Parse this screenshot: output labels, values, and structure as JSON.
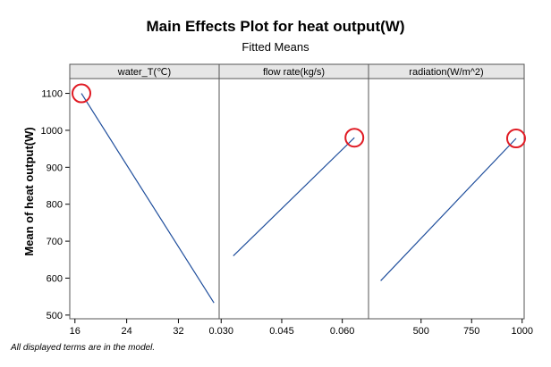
{
  "chart_data": {
    "type": "line",
    "title": "Main Effects Plot for heat output(W)",
    "subtitle": "Fitted Means",
    "ylabel": "Mean of heat output(W)",
    "ylim": [
      490,
      1140
    ],
    "yticks": [
      500,
      600,
      700,
      800,
      900,
      1000,
      1100
    ],
    "footnote": "All displayed terms are in the model.",
    "line_color": "#1f4e9c",
    "marker_color": "#e01b24",
    "panels": [
      {
        "name": "water_T(℃)",
        "xlim": [
          15.2,
          38.3
        ],
        "xticks": [
          16,
          24,
          32
        ],
        "x": [
          17,
          37.5
        ],
        "y": [
          1100,
          533
        ],
        "highlight": {
          "x": 17,
          "y": 1100
        }
      },
      {
        "name": "flow rate(kg/s)",
        "xlim": [
          0.0295,
          0.0665
        ],
        "xticks": [
          "0.030",
          "0.045",
          "0.060"
        ],
        "x": [
          0.033,
          0.063
        ],
        "y": [
          660,
          980
        ],
        "highlight": {
          "x": 0.063,
          "y": 980
        }
      },
      {
        "name": "radiation(W/m^2)",
        "xlim": [
          240,
          1010
        ],
        "xticks": [
          500,
          750,
          1000
        ],
        "x": [
          300,
          970
        ],
        "y": [
          593,
          978
        ],
        "highlight": {
          "x": 970,
          "y": 978
        }
      }
    ]
  }
}
